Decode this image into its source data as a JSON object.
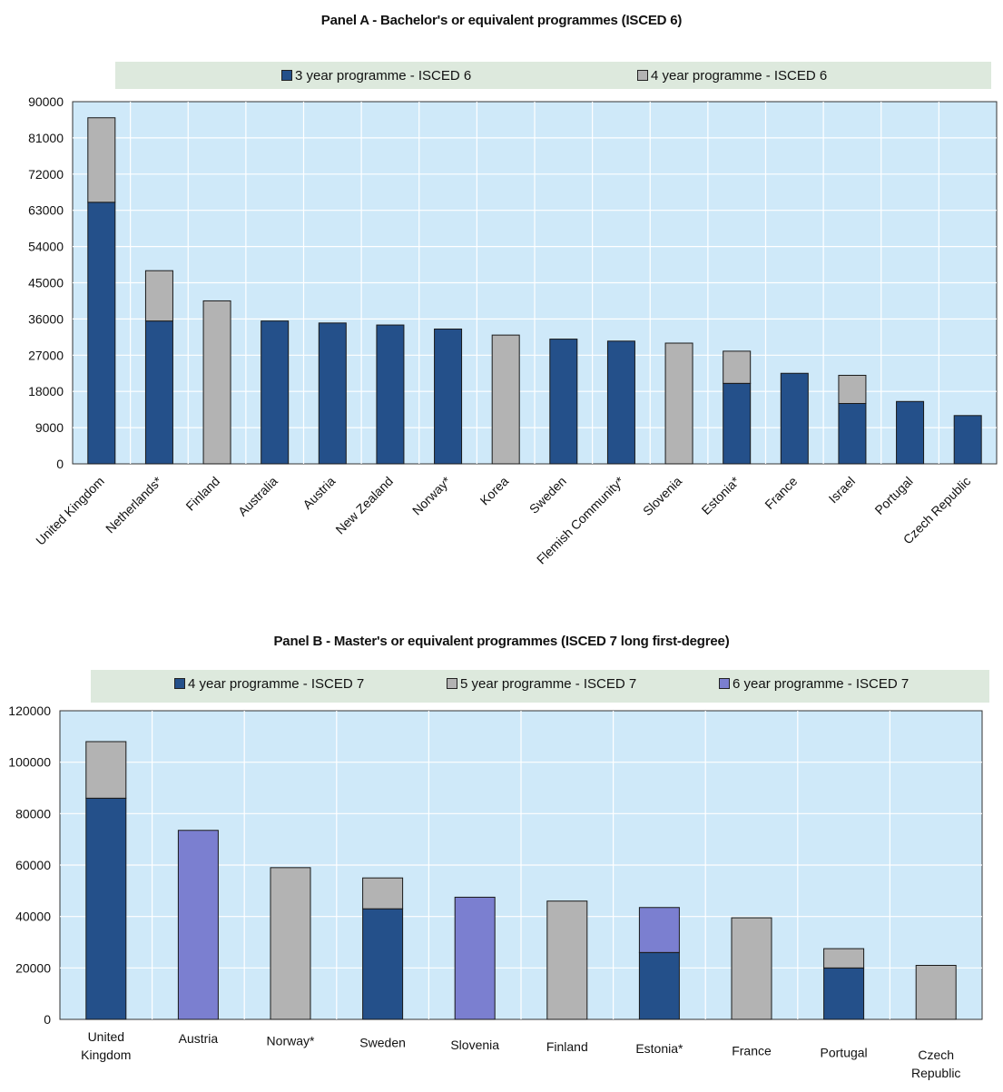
{
  "chart_data": [
    {
      "type": "bar",
      "stacked": true,
      "title": "Panel A - Bachelor's or equivalent programmes (ISCED 6)",
      "categories": [
        "United Kingdom",
        "Netherlands*",
        "Finland",
        "Australia",
        "Austria",
        "New Zealand",
        "Norway*",
        "Korea",
        "Sweden",
        "Flemish Community*",
        "Slovenia",
        "Estonia*",
        "France",
        "Israel",
        "Portugal",
        "Czech Republic"
      ],
      "series": [
        {
          "name": "3 year programme - ISCED 6",
          "color": "#24508a",
          "values": [
            65000,
            35500,
            0,
            35500,
            35000,
            34500,
            33500,
            0,
            31000,
            30500,
            0,
            20000,
            22500,
            15000,
            15500,
            12000
          ]
        },
        {
          "name": "4 year programme - ISCED 6",
          "color": "#b3b3b3",
          "values": [
            21000,
            12500,
            40500,
            0,
            0,
            0,
            0,
            32000,
            0,
            0,
            30000,
            8000,
            0,
            7000,
            0,
            0
          ]
        }
      ],
      "yticks": [
        "90000",
        "81000",
        "72000",
        "63000",
        "54000",
        "45000",
        "36000",
        "27000",
        "18000",
        "9000",
        "0"
      ],
      "ylim": [
        0,
        90000
      ],
      "grid": true,
      "legend": "top"
    },
    {
      "type": "bar",
      "stacked": true,
      "title": "Panel B - Master's or equivalent programmes (ISCED 7 long first-degree)",
      "categories": [
        "United Kingdom",
        "Austria",
        "Norway*",
        "Sweden",
        "Slovenia",
        "Finland",
        "Estonia*",
        "France",
        "Portugal",
        "Czech Republic"
      ],
      "series": [
        {
          "name": "4 year programme - ISCED 7",
          "color": "#24508a",
          "values": [
            86000,
            0,
            0,
            43000,
            0,
            0,
            26000,
            0,
            20000,
            0
          ]
        },
        {
          "name": "5 year programme - ISCED 7",
          "color": "#b3b3b3",
          "values": [
            22000,
            0,
            59000,
            12000,
            0,
            46000,
            0,
            39500,
            7500,
            21000
          ]
        },
        {
          "name": "6 year programme - ISCED 7",
          "color": "#7b7fd0",
          "values": [
            0,
            73500,
            0,
            0,
            47500,
            0,
            17500,
            0,
            0,
            0
          ]
        }
      ],
      "yticks": [
        "120000",
        "100000",
        "80000",
        "60000",
        "40000",
        "20000",
        "0"
      ],
      "ylim": [
        0,
        120000
      ],
      "grid": true,
      "legend": "top"
    }
  ]
}
